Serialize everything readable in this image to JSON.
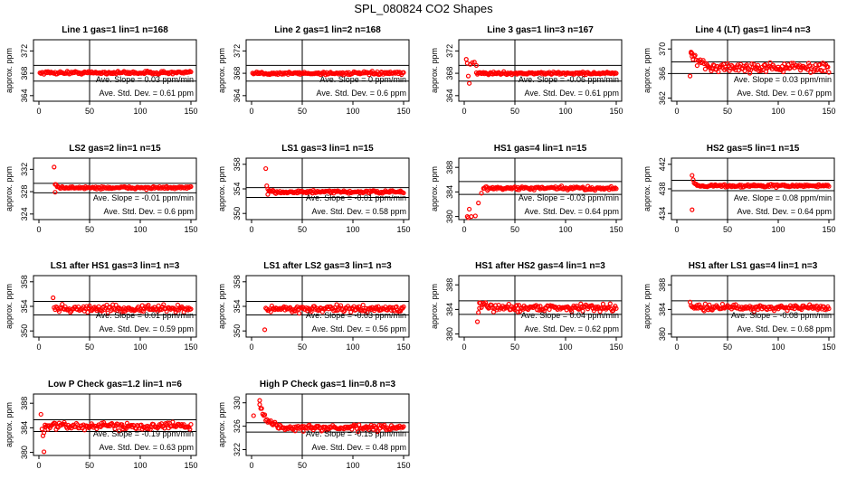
{
  "title": "SPL_080824  CO2 Shapes",
  "ylabel": "approx. ppm",
  "slope_label": "Ave. Slope =",
  "slope_unit": "ppm/min",
  "std_label": "Ave. Std. Dev. =",
  "std_unit": "ppm",
  "point_color": "#ff0000",
  "chart_data": [
    {
      "type": "scatter",
      "title": "Line 1 gas=1 lin=1 n=168",
      "xlim": [
        0,
        150
      ],
      "xticks": [
        0,
        50,
        100,
        150
      ],
      "yticks": [
        364,
        368,
        372
      ],
      "ylim": [
        363,
        374
      ],
      "hlines": [
        366.6,
        369.4
      ],
      "vline": 50,
      "slope": "0.03",
      "std": "0.61",
      "shape": {
        "start": 1,
        "base": 368.1,
        "amp": 0,
        "decay": 10,
        "noise": 0.12,
        "early": []
      }
    },
    {
      "type": "scatter",
      "title": "Line 2 gas=1 lin=2 n=168",
      "xlim": [
        0,
        150
      ],
      "xticks": [
        0,
        50,
        100,
        150
      ],
      "yticks": [
        364,
        368,
        372
      ],
      "ylim": [
        363,
        374
      ],
      "hlines": [
        366.6,
        369.4
      ],
      "vline": 50,
      "slope": "0",
      "std": "0.6",
      "shape": {
        "start": 1,
        "base": 368.0,
        "amp": 0,
        "decay": 10,
        "noise": 0.12,
        "early": []
      }
    },
    {
      "type": "scatter",
      "title": "Line 3 gas=1 lin=3 n=167",
      "xlim": [
        0,
        150
      ],
      "xticks": [
        0,
        50,
        100,
        150
      ],
      "yticks": [
        364,
        368,
        372
      ],
      "ylim": [
        363,
        374
      ],
      "hlines": [
        366.6,
        369.4
      ],
      "vline": 50,
      "slope": "-0.06",
      "std": "0.61",
      "shape": {
        "start": 12,
        "base": 368.0,
        "amp": 0,
        "decay": 10,
        "noise": 0.1,
        "early": [
          [
            2,
            370.5
          ],
          [
            3,
            369.8
          ],
          [
            4,
            367.5
          ],
          [
            5,
            366.2
          ],
          [
            6,
            369.6
          ],
          [
            8,
            369.9
          ],
          [
            10,
            370.0
          ],
          [
            12,
            369.4
          ]
        ]
      }
    },
    {
      "type": "scatter",
      "title": "Line 4 (LT) gas=1 lin=4 n=3",
      "xlim": [
        0,
        150
      ],
      "xticks": [
        0,
        50,
        100,
        150
      ],
      "yticks": [
        362,
        366,
        370
      ],
      "ylim": [
        361.5,
        371.5
      ],
      "hlines": [
        366.0,
        367.9
      ],
      "vline": 50,
      "slope": "0.03",
      "std": "0.67",
      "shape": {
        "start": 14,
        "base": 367.0,
        "amp": 2.5,
        "decay": 6,
        "noise": 0.35,
        "early": [
          [
            13,
            365.6
          ],
          [
            14,
            369.5
          ],
          [
            15,
            368.8
          ]
        ]
      }
    },
    {
      "type": "scatter",
      "title": "LS2 gas=2 lin=1 n=15",
      "xlim": [
        0,
        150
      ],
      "xticks": [
        0,
        50,
        100,
        150
      ],
      "yticks": [
        324,
        328,
        332
      ],
      "ylim": [
        323,
        334
      ],
      "hlines": [
        327.8,
        329.5
      ],
      "vline": 50,
      "slope": "-0.01",
      "std": "0.6",
      "shape": {
        "start": 16,
        "base": 328.7,
        "amp": 0.4,
        "decay": 3,
        "noise": 0.1,
        "early": [
          [
            15,
            332.4
          ],
          [
            16,
            327.9
          ]
        ]
      }
    },
    {
      "type": "scatter",
      "title": "LS1 gas=3 lin=1 n=15",
      "xlim": [
        0,
        150
      ],
      "xticks": [
        0,
        50,
        100,
        150
      ],
      "yticks": [
        350,
        354,
        358
      ],
      "ylim": [
        349,
        359
      ],
      "hlines": [
        352.6,
        354.2
      ],
      "vline": 50,
      "slope": "-0.01",
      "std": "0.58",
      "shape": {
        "start": 16,
        "base": 353.5,
        "amp": 0.3,
        "decay": 3,
        "noise": 0.1,
        "early": [
          [
            14,
            357.3
          ],
          [
            15,
            354.5
          ],
          [
            16,
            353.1
          ]
        ]
      }
    },
    {
      "type": "scatter",
      "title": "HS1 gas=4 lin=1 n=15",
      "xlim": [
        0,
        150
      ],
      "xticks": [
        0,
        50,
        100,
        150
      ],
      "yticks": [
        380,
        384,
        388
      ],
      "ylim": [
        379.5,
        389.5
      ],
      "hlines": [
        383.6,
        385.7
      ],
      "vline": 50,
      "slope": "-0.03",
      "std": "0.64",
      "shape": {
        "start": 19,
        "base": 384.6,
        "amp": 0,
        "decay": 3,
        "noise": 0.13,
        "early": [
          [
            3,
            380.0
          ],
          [
            4,
            379.8
          ],
          [
            5,
            381.2
          ],
          [
            7,
            380.0
          ],
          [
            11,
            380.1
          ],
          [
            14,
            382.2
          ],
          [
            17,
            383.8
          ]
        ]
      }
    },
    {
      "type": "scatter",
      "title": "HS2 gas=5 lin=1 n=15",
      "xlim": [
        0,
        150
      ],
      "xticks": [
        0,
        50,
        100,
        150
      ],
      "yticks": [
        434,
        438,
        442
      ],
      "ylim": [
        433,
        443
      ],
      "hlines": [
        437.7,
        439.4
      ],
      "vline": 50,
      "slope": "0.08",
      "std": "0.64",
      "shape": {
        "start": 17,
        "base": 438.5,
        "amp": 0.4,
        "decay": 3,
        "noise": 0.1,
        "early": [
          [
            15,
            440.2
          ],
          [
            16,
            439.5
          ],
          [
            15,
            434.6
          ]
        ]
      }
    },
    {
      "type": "scatter",
      "title": "LS1 after HS1 gas=3 lin=1 n=3",
      "xlim": [
        0,
        150
      ],
      "xticks": [
        0,
        50,
        100,
        150
      ],
      "yticks": [
        350,
        354,
        358
      ],
      "ylim": [
        349,
        359
      ],
      "hlines": [
        352.6,
        354.8
      ],
      "vline": 50,
      "slope": "0.01",
      "std": "0.59",
      "shape": {
        "start": 15,
        "base": 353.6,
        "amp": 0.4,
        "decay": 4,
        "noise": 0.25,
        "early": [
          [
            14,
            355.4
          ]
        ]
      }
    },
    {
      "type": "scatter",
      "title": "LS1 after LS2 gas=3 lin=1 n=3",
      "xlim": [
        0,
        150
      ],
      "xticks": [
        0,
        50,
        100,
        150
      ],
      "yticks": [
        350,
        354,
        358
      ],
      "ylim": [
        349,
        359
      ],
      "hlines": [
        352.6,
        354.8
      ],
      "vline": 50,
      "slope": "-0.03",
      "std": "0.56",
      "shape": {
        "start": 14,
        "base": 353.6,
        "amp": 0,
        "decay": 4,
        "noise": 0.22,
        "early": [
          [
            13,
            350.2
          ]
        ]
      }
    },
    {
      "type": "scatter",
      "title": "HS1 after HS2 gas=4 lin=1 n=3",
      "xlim": [
        0,
        150
      ],
      "xticks": [
        0,
        50,
        100,
        150
      ],
      "yticks": [
        380,
        384,
        388
      ],
      "ylim": [
        379.5,
        389.5
      ],
      "hlines": [
        383.2,
        385.4
      ],
      "vline": 50,
      "slope": "0.04",
      "std": "0.62",
      "shape": {
        "start": 15,
        "base": 384.3,
        "amp": 0.6,
        "decay": 4,
        "noise": 0.25,
        "early": [
          [
            13,
            382.0
          ],
          [
            14,
            383.5
          ],
          [
            15,
            384.2
          ]
        ]
      }
    },
    {
      "type": "scatter",
      "title": "HS1 after LS1 gas=4 lin=1 n=3",
      "xlim": [
        0,
        150
      ],
      "xticks": [
        0,
        50,
        100,
        150
      ],
      "yticks": [
        380,
        384,
        388
      ],
      "ylim": [
        379.5,
        389.5
      ],
      "hlines": [
        383.2,
        385.4
      ],
      "vline": 50,
      "slope": "-0.08",
      "std": "0.68",
      "shape": {
        "start": 14,
        "base": 384.3,
        "amp": 0.5,
        "decay": 4,
        "noise": 0.22,
        "early": [
          [
            13,
            385.2
          ]
        ]
      }
    },
    {
      "type": "scatter",
      "title": "Low P Check gas=1.2 lin=1 n=6",
      "xlim": [
        0,
        150
      ],
      "xticks": [
        0,
        50,
        100,
        150
      ],
      "yticks": [
        380,
        384,
        388
      ],
      "ylim": [
        379.5,
        389.5
      ],
      "hlines": [
        383.4,
        385.3
      ],
      "vline": 50,
      "slope": "-0.19",
      "std": "0.63",
      "shape": {
        "start": 6,
        "base": 384.3,
        "amp": 0,
        "decay": 4,
        "noise": 0.25,
        "early": [
          [
            2,
            386.2
          ],
          [
            3,
            383.8
          ],
          [
            4,
            382.7
          ],
          [
            5,
            383.2
          ],
          [
            5,
            380.1
          ],
          [
            6,
            384.1
          ]
        ]
      }
    },
    {
      "type": "scatter",
      "title": "High P Check gas=1 lin=0.8 n=3",
      "xlim": [
        0,
        150
      ],
      "xticks": [
        0,
        50,
        100,
        150
      ],
      "yticks": [
        322,
        326,
        330
      ],
      "ylim": [
        321,
        331.5
      ],
      "hlines": [
        325.0,
        326.6
      ],
      "vline": 50,
      "slope": "-0.15",
      "std": "0.48",
      "shape": {
        "start": 9,
        "base": 325.7,
        "amp": 3.5,
        "decay": 7,
        "noise": 0.22,
        "early": [
          [
            2,
            327.8
          ],
          [
            8,
            330.4
          ],
          [
            8,
            329.7
          ]
        ]
      }
    }
  ]
}
